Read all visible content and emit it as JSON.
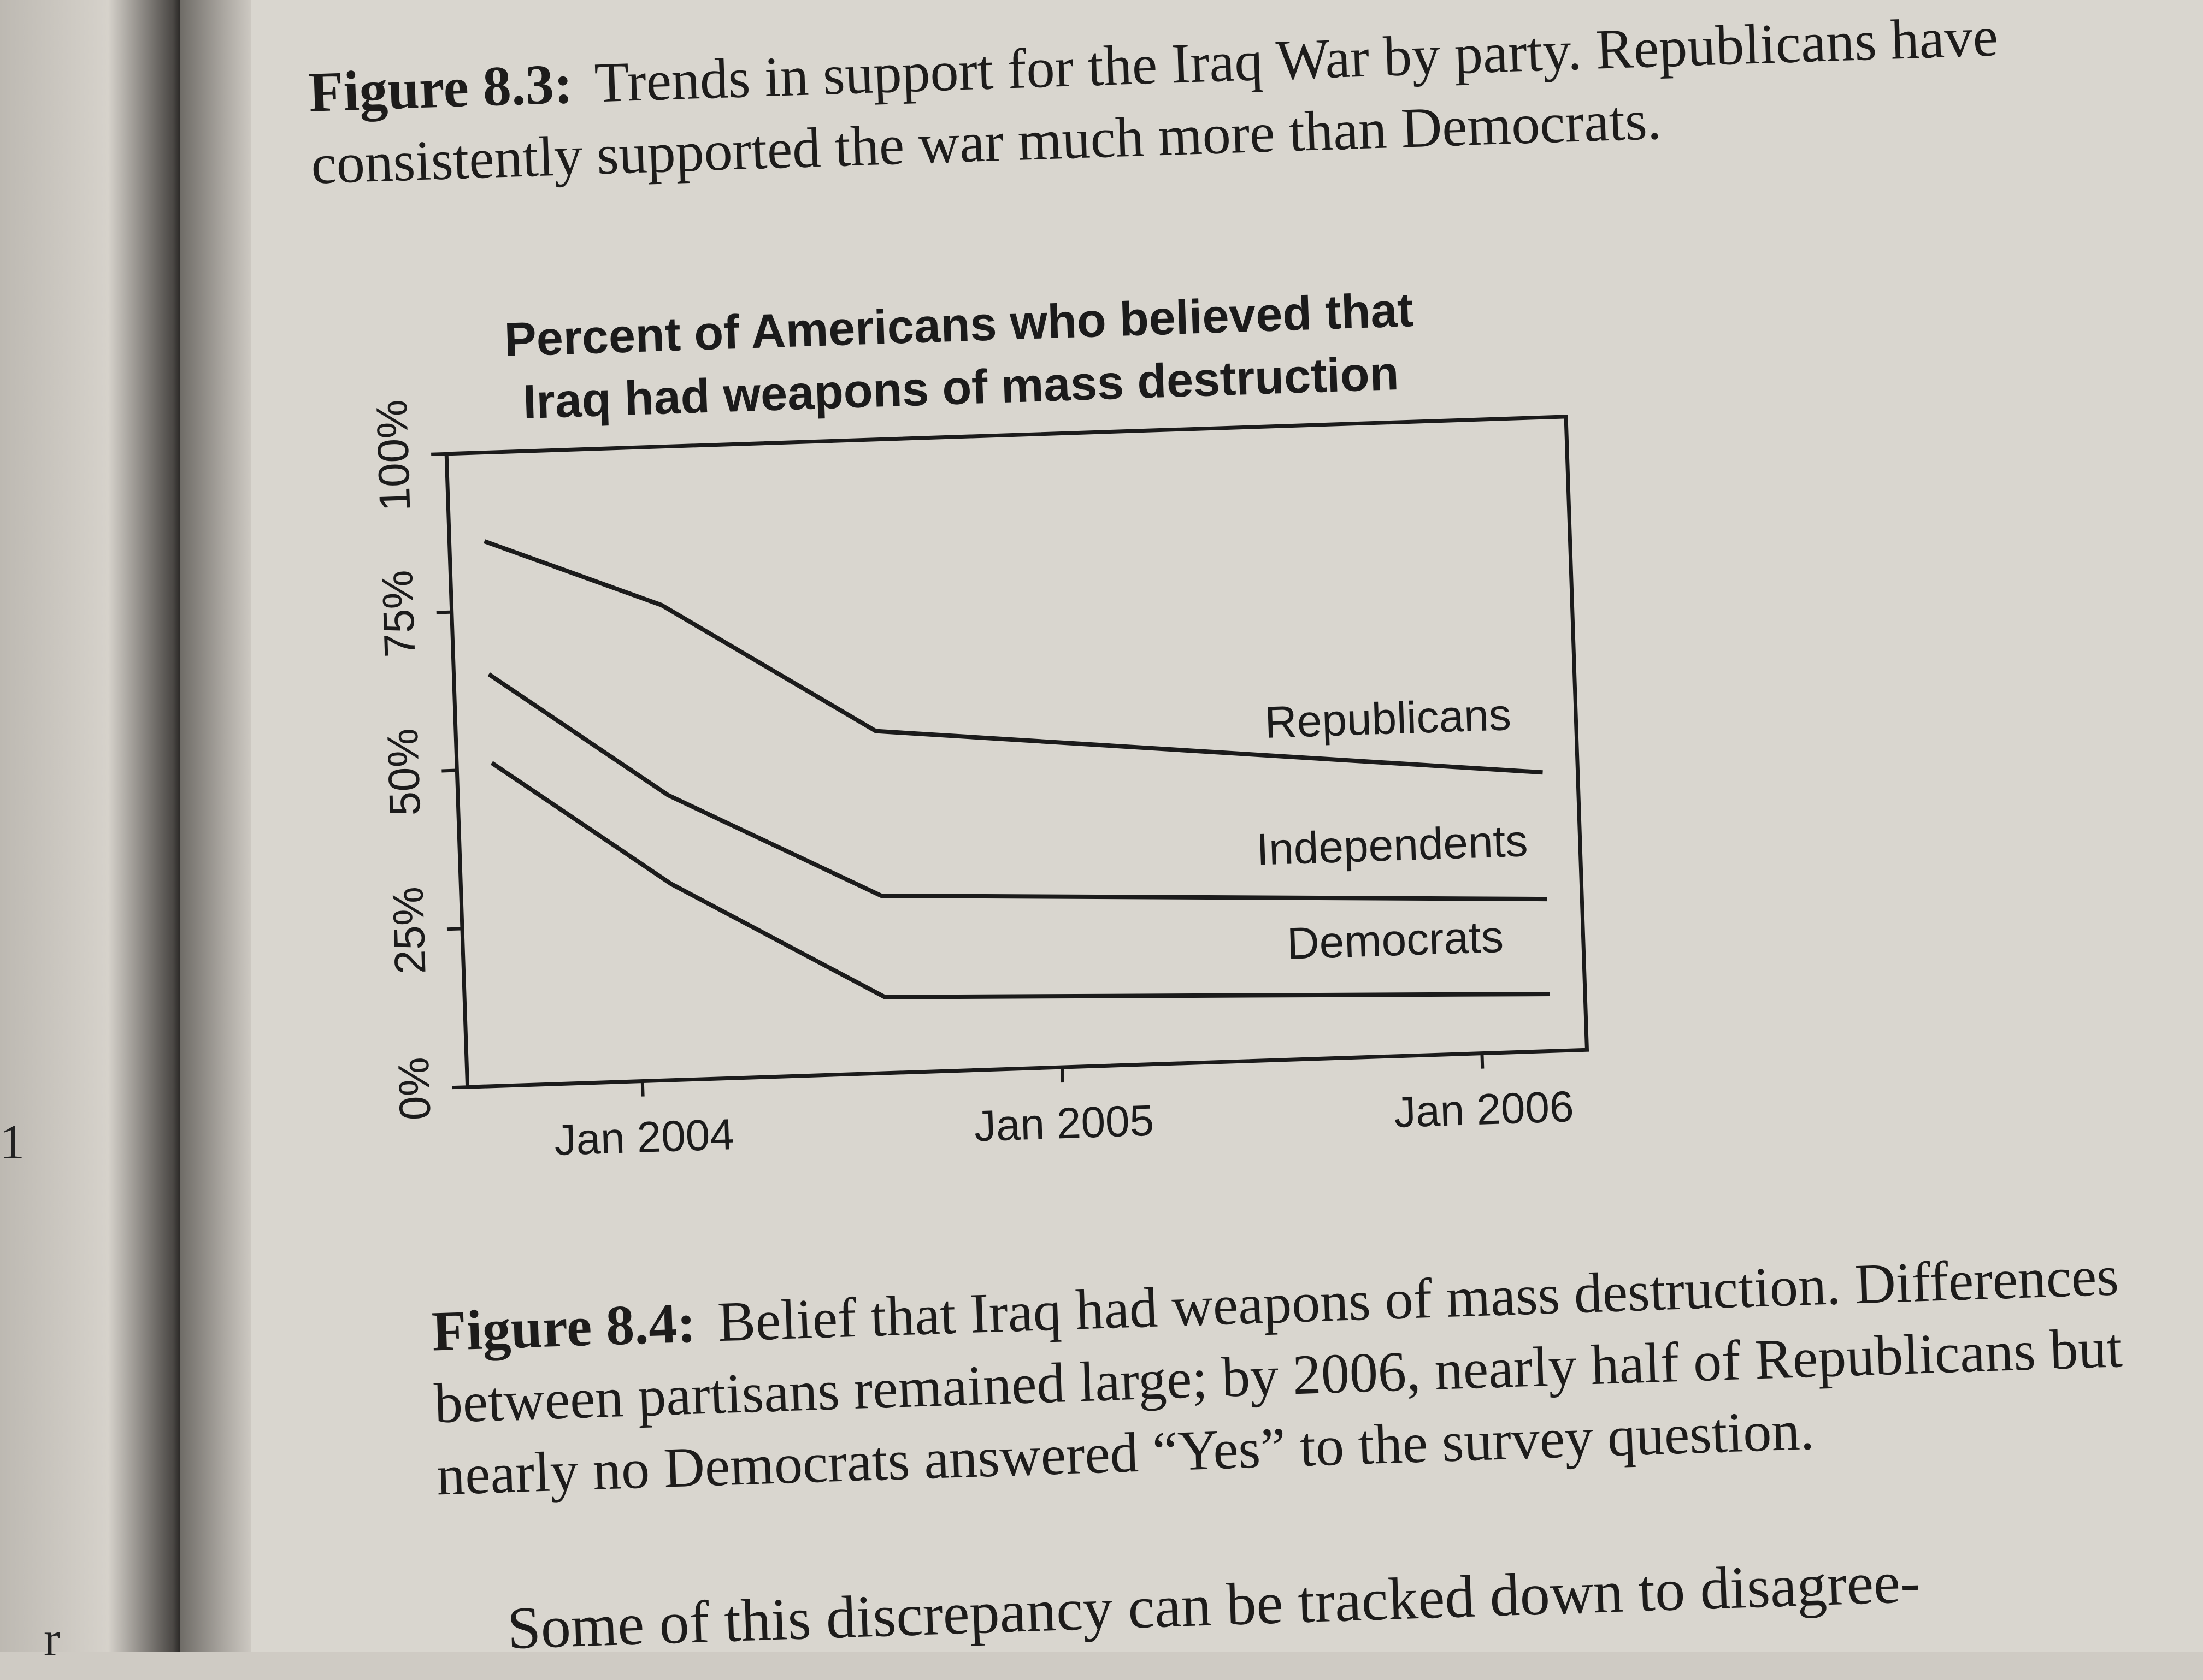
{
  "left_page": {
    "fragments": [
      "1",
      "r"
    ]
  },
  "figure_8_3": {
    "label": "Figure 8.3:",
    "text": "Trends in support for the Iraq War by party. Republicans have consistently supported the war much more than Democrats."
  },
  "figure_8_4": {
    "label": "Figure 8.4:",
    "text": "Belief that Iraq had weapons of mass destruction. Differences between partisans remained large; by 2006, nearly half of Republicans but nearly no Democrats answered “Yes” to the survey question."
  },
  "body_text_partial": "Some of this discrepancy can be tracked down to disagree-",
  "chart_data": {
    "type": "line",
    "title": "Percent of Americans who believed that Iraq had weapons of mass destruction",
    "title_lines": [
      "Percent of Americans who believed that",
      "Iraq had weapons of mass destruction"
    ],
    "xlabel": "",
    "ylabel": "",
    "x_ticks": [
      {
        "date": "2004-01",
        "label": "Jan 2004"
      },
      {
        "date": "2005-01",
        "label": "Jan 2005"
      },
      {
        "date": "2006-01",
        "label": "Jan 2006"
      }
    ],
    "y_ticks": [
      {
        "value": 0,
        "label": "0%"
      },
      {
        "value": 25,
        "label": "25%"
      },
      {
        "value": 50,
        "label": "50%"
      },
      {
        "value": 75,
        "label": "75%"
      },
      {
        "value": 100,
        "label": "100%"
      }
    ],
    "xlim": [
      "2003-08",
      "2006-04"
    ],
    "ylim": [
      0,
      100
    ],
    "x": [
      "2003-09",
      "2004-02",
      "2004-08",
      "2006-03"
    ],
    "series": [
      {
        "name": "Republicans",
        "values": [
          86,
          75,
          54,
          44
        ]
      },
      {
        "name": "Independents",
        "values": [
          65,
          45,
          28,
          24
        ]
      },
      {
        "name": "Democrats",
        "values": [
          51,
          31,
          12,
          9
        ]
      }
    ],
    "grid": false,
    "legend": "inline labels on lines",
    "line_color": "#1b1b1b"
  }
}
